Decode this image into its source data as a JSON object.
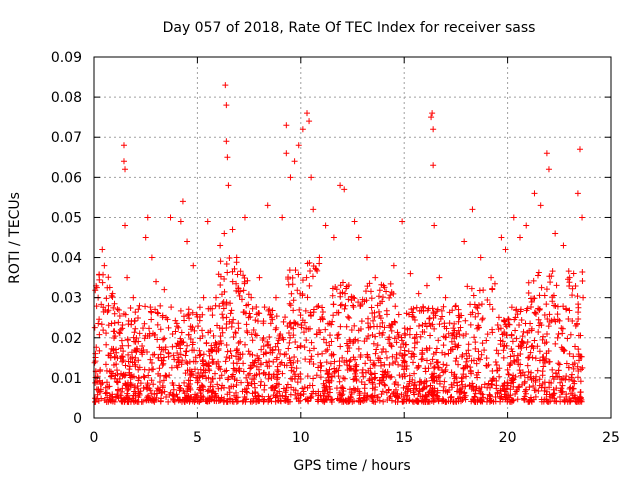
{
  "chart_data": {
    "type": "scatter",
    "title": "Day 057 of 2018, Rate Of TEC Index for receiver sass",
    "xlabel": "GPS time / hours",
    "ylabel": "ROTI / TECUs",
    "xlim": [
      0,
      25
    ],
    "ylim": [
      0,
      0.09
    ],
    "xticks": [
      0,
      5,
      10,
      15,
      20,
      25
    ],
    "xtick_labels": [
      "0",
      "5",
      "10",
      "15",
      "20",
      "25"
    ],
    "yticks": [
      0,
      0.01,
      0.02,
      0.03,
      0.04,
      0.05,
      0.06,
      0.07,
      0.08,
      0.09
    ],
    "ytick_labels": [
      "0",
      "0.01",
      "0.02",
      "0.03",
      "0.04",
      "0.05",
      "0.06",
      "0.07",
      "0.08",
      "0.09"
    ],
    "grid": true,
    "marker": "+",
    "series_color": "#ff0000",
    "series": [
      {
        "name": "ROTI",
        "note": "dense cloud of ~continuous points; values below are representative samples read off the plot",
        "points": [
          [
            0.05,
            0.004
          ],
          [
            0.2,
            0.03
          ],
          [
            0.4,
            0.042
          ],
          [
            0.5,
            0.038
          ],
          [
            0.7,
            0.028
          ],
          [
            0.9,
            0.031
          ],
          [
            1.0,
            0.026
          ],
          [
            1.3,
            0.022
          ],
          [
            1.45,
            0.068
          ],
          [
            1.45,
            0.064
          ],
          [
            1.5,
            0.062
          ],
          [
            1.5,
            0.048
          ],
          [
            1.6,
            0.035
          ],
          [
            1.9,
            0.03
          ],
          [
            2.2,
            0.028
          ],
          [
            2.5,
            0.045
          ],
          [
            2.6,
            0.05
          ],
          [
            2.8,
            0.04
          ],
          [
            3.0,
            0.034
          ],
          [
            3.4,
            0.032
          ],
          [
            3.7,
            0.05
          ],
          [
            4.2,
            0.049
          ],
          [
            4.3,
            0.054
          ],
          [
            4.5,
            0.044
          ],
          [
            4.8,
            0.038
          ],
          [
            5.3,
            0.03
          ],
          [
            5.5,
            0.049
          ],
          [
            5.9,
            0.03
          ],
          [
            6.1,
            0.043
          ],
          [
            6.3,
            0.046
          ],
          [
            6.35,
            0.083
          ],
          [
            6.4,
            0.078
          ],
          [
            6.4,
            0.069
          ],
          [
            6.45,
            0.065
          ],
          [
            6.5,
            0.058
          ],
          [
            6.7,
            0.047
          ],
          [
            6.9,
            0.04
          ],
          [
            7.3,
            0.05
          ],
          [
            7.6,
            0.03
          ],
          [
            8.0,
            0.035
          ],
          [
            8.4,
            0.053
          ],
          [
            8.8,
            0.03
          ],
          [
            9.1,
            0.05
          ],
          [
            9.3,
            0.066
          ],
          [
            9.3,
            0.073
          ],
          [
            9.5,
            0.06
          ],
          [
            9.7,
            0.064
          ],
          [
            9.9,
            0.068
          ],
          [
            10.1,
            0.072
          ],
          [
            10.3,
            0.076
          ],
          [
            10.4,
            0.074
          ],
          [
            10.5,
            0.06
          ],
          [
            10.6,
            0.052
          ],
          [
            10.9,
            0.04
          ],
          [
            11.2,
            0.048
          ],
          [
            11.6,
            0.045
          ],
          [
            11.9,
            0.058
          ],
          [
            12.1,
            0.057
          ],
          [
            12.6,
            0.049
          ],
          [
            12.8,
            0.045
          ],
          [
            13.2,
            0.04
          ],
          [
            13.6,
            0.035
          ],
          [
            14.0,
            0.033
          ],
          [
            14.5,
            0.038
          ],
          [
            14.9,
            0.049
          ],
          [
            15.3,
            0.036
          ],
          [
            15.7,
            0.031
          ],
          [
            16.1,
            0.033
          ],
          [
            16.3,
            0.075
          ],
          [
            16.35,
            0.076
          ],
          [
            16.4,
            0.072
          ],
          [
            16.4,
            0.063
          ],
          [
            16.45,
            0.048
          ],
          [
            16.7,
            0.035
          ],
          [
            17.0,
            0.03
          ],
          [
            17.5,
            0.028
          ],
          [
            17.9,
            0.044
          ],
          [
            18.3,
            0.052
          ],
          [
            18.7,
            0.04
          ],
          [
            19.2,
            0.035
          ],
          [
            19.7,
            0.045
          ],
          [
            19.9,
            0.042
          ],
          [
            20.3,
            0.05
          ],
          [
            20.6,
            0.045
          ],
          [
            20.9,
            0.048
          ],
          [
            21.3,
            0.056
          ],
          [
            21.6,
            0.053
          ],
          [
            21.9,
            0.066
          ],
          [
            22.0,
            0.062
          ],
          [
            22.3,
            0.046
          ],
          [
            22.7,
            0.043
          ],
          [
            23.0,
            0.035
          ],
          [
            23.4,
            0.056
          ],
          [
            23.5,
            0.067
          ],
          [
            23.6,
            0.05
          ],
          [
            23.65,
            0.03
          ],
          [
            0.3,
            0.012
          ],
          [
            1.1,
            0.009
          ],
          [
            2.0,
            0.015
          ],
          [
            3.1,
            0.011
          ],
          [
            4.0,
            0.013
          ],
          [
            5.0,
            0.01
          ],
          [
            6.0,
            0.014
          ],
          [
            7.0,
            0.012
          ],
          [
            8.0,
            0.011
          ],
          [
            9.0,
            0.016
          ],
          [
            10.0,
            0.018
          ],
          [
            11.0,
            0.013
          ],
          [
            12.0,
            0.015
          ],
          [
            13.0,
            0.012
          ],
          [
            14.0,
            0.01
          ],
          [
            15.0,
            0.011
          ],
          [
            16.0,
            0.009
          ],
          [
            17.0,
            0.012
          ],
          [
            18.0,
            0.014
          ],
          [
            19.0,
            0.013
          ],
          [
            20.0,
            0.012
          ],
          [
            21.0,
            0.015
          ],
          [
            22.0,
            0.014
          ],
          [
            23.0,
            0.016
          ]
        ]
      }
    ]
  }
}
